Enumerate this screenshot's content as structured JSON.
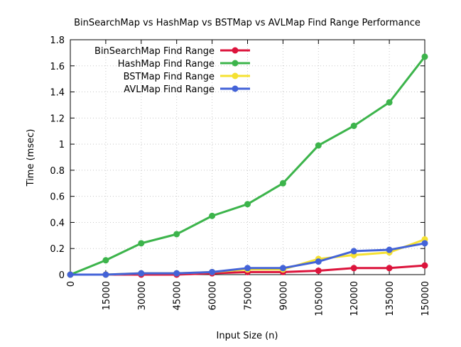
{
  "chart_data": {
    "type": "line",
    "title": "BinSearchMap vs HashMap vs BSTMap vs AVLMap Find Range Performance",
    "xlabel": "Input Size (n)",
    "ylabel": "Time (msec)",
    "x": [
      0,
      15000,
      30000,
      45000,
      60000,
      75000,
      90000,
      105000,
      120000,
      135000,
      150000
    ],
    "x_tick_labels": [
      "0",
      "15000",
      "30000",
      "45000",
      "60000",
      "75000",
      "90000",
      "105000",
      "120000",
      "135000",
      "150000"
    ],
    "y_ticks": [
      0,
      0.2,
      0.4,
      0.6,
      0.8,
      1,
      1.2,
      1.4,
      1.6,
      1.8
    ],
    "y_tick_labels": [
      "0",
      "0.2",
      "0.4",
      "0.6",
      "0.8",
      "1",
      "1.2",
      "1.4",
      "1.6",
      "1.8"
    ],
    "xlim": [
      0,
      150000
    ],
    "ylim": [
      0,
      1.8
    ],
    "grid": true,
    "legend_position": "top-left",
    "series": [
      {
        "name": "BinSearchMap Find Range",
        "color": "#dc143c",
        "values": [
          0,
          0,
          0,
          0,
          0.01,
          0.02,
          0.02,
          0.03,
          0.05,
          0.05,
          0.07
        ]
      },
      {
        "name": "HashMap Find Range",
        "color": "#3cb44b",
        "values": [
          0,
          0.11,
          0.24,
          0.31,
          0.45,
          0.54,
          0.7,
          0.99,
          1.14,
          1.32,
          1.67
        ]
      },
      {
        "name": "BSTMap Find Range",
        "color": "#f5e131",
        "values": [
          0,
          0,
          0.01,
          0.01,
          0.02,
          0.04,
          0.04,
          0.12,
          0.15,
          0.17,
          0.27
        ]
      },
      {
        "name": "AVLMap Find Range",
        "color": "#4363d8",
        "values": [
          0,
          0,
          0.01,
          0.01,
          0.02,
          0.05,
          0.05,
          0.1,
          0.18,
          0.19,
          0.24
        ]
      }
    ]
  }
}
